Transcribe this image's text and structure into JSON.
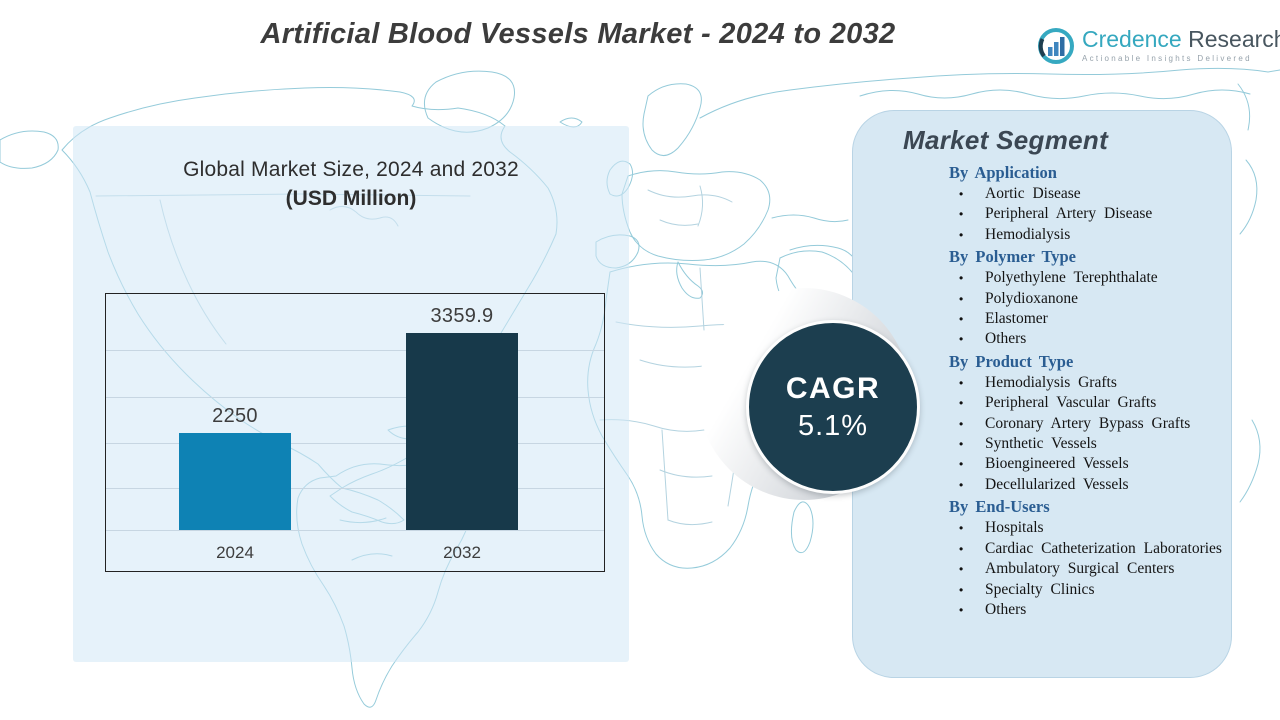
{
  "title": "Artificial Blood Vessels Market - 2024 to 2032",
  "logo": {
    "name_primary": "Credence",
    "name_secondary": "Research",
    "tagline": "Actionable Insights Delivered"
  },
  "chart": {
    "title_line1": "Global Market Size, 2024 and 2032",
    "title_line2": "(USD Million)",
    "bars": [
      {
        "label": "2024",
        "display": "2250"
      },
      {
        "label": "2032",
        "display": "3359.9"
      }
    ]
  },
  "chart_data": {
    "type": "bar",
    "categories": [
      "2024",
      "2032"
    ],
    "values": [
      2250,
      3359.9
    ],
    "title": "Global Market Size, 2024 and 2032 (USD Million)",
    "xlabel": "",
    "ylabel": "USD Million",
    "ylim": [
      1170,
      3790
    ],
    "grid": true,
    "legend": false
  },
  "cagr": {
    "label": "CAGR",
    "value": "5.1%"
  },
  "segment_panel": {
    "title": "Market Segment",
    "sections": [
      {
        "header": "By Application",
        "items": [
          "Aortic Disease",
          "Peripheral Artery Disease",
          "Hemodialysis"
        ]
      },
      {
        "header": "By Polymer Type",
        "items": [
          "Polyethylene Terephthalate",
          "Polydioxanone",
          "Elastomer",
          "Others"
        ]
      },
      {
        "header": "By Product Type",
        "items": [
          "Hemodialysis Grafts",
          "Peripheral Vascular Grafts",
          "Coronary Artery Bypass Grafts",
          "Synthetic Vessels",
          "Bioengineered Vessels",
          "Decellularized Vessels"
        ]
      },
      {
        "header": "By End-Users",
        "items": [
          "Hospitals",
          "Cardiac Catheterization Laboratories",
          "Ambulatory Surgical Centers",
          "Specialty Clinics",
          "Others"
        ]
      }
    ]
  },
  "colors": {
    "bar_2024": "#0e82b4",
    "bar_2032": "#17394a",
    "cagr_circle": "#1c3e4f",
    "panel_blue": "#d7e8f3",
    "header_blue": "#2a5d92",
    "map_stroke": "#8fc8d8",
    "brand_teal": "#35a8bf",
    "brand_dark": "#48565f"
  }
}
